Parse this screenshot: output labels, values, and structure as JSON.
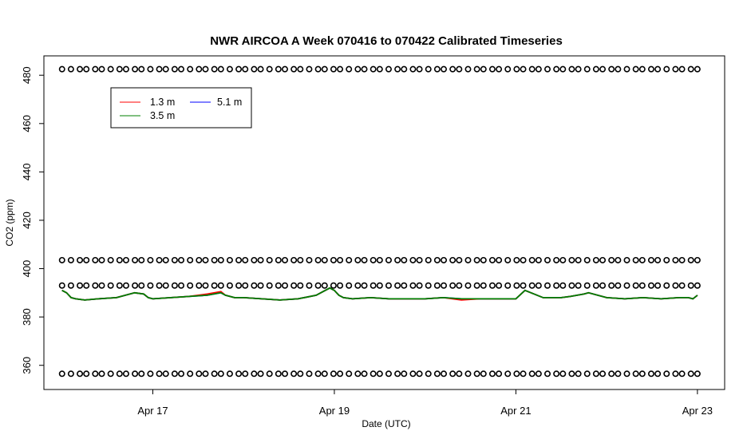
{
  "chart_data": {
    "type": "line",
    "title": "NWR AIRCOA A  Week 070416 to 070422  Calibrated Timeseries",
    "xlabel": "Date (UTC)",
    "ylabel": "CO2 (ppm)",
    "x_ticks": [
      {
        "label": "Apr 17",
        "value": 1
      },
      {
        "label": "Apr 19",
        "value": 3
      },
      {
        "label": "Apr 21",
        "value": 5
      },
      {
        "label": "Apr 23",
        "value": 7
      }
    ],
    "y_ticks": [
      360,
      380,
      400,
      420,
      440,
      460,
      480
    ],
    "xlim": [
      -0.2,
      7.3
    ],
    "ylim": [
      350,
      488
    ],
    "legend": {
      "placement": "top-left",
      "entries": [
        {
          "name": "1.3 m",
          "color": "#ff0000"
        },
        {
          "name": "5.1 m",
          "color": "#0000ff"
        },
        {
          "name": "3.5 m",
          "color": "#008000"
        }
      ]
    },
    "series": [
      {
        "name": "5.1 m",
        "color": "#0000ff",
        "x": [
          0.0,
          0.05,
          0.1,
          0.15,
          0.25,
          0.4,
          0.6,
          0.8,
          0.9,
          0.95,
          1.0,
          1.2,
          1.4,
          1.6,
          1.75,
          1.8,
          1.9,
          2.0,
          2.2,
          2.4,
          2.6,
          2.8,
          2.9,
          2.95,
          3.0,
          3.05,
          3.1,
          3.2,
          3.4,
          3.6,
          3.8,
          4.0,
          4.2,
          4.4,
          4.6,
          4.7,
          4.8,
          4.9,
          5.0,
          5.1,
          5.3,
          5.5,
          5.6,
          5.75,
          5.8,
          6.0,
          6.2,
          6.4,
          6.6,
          6.8,
          6.9,
          6.95,
          7.0
        ],
        "values": [
          391,
          390,
          388,
          387.5,
          387,
          387.5,
          388,
          390,
          389.5,
          388,
          387.5,
          388,
          388.5,
          389,
          390,
          389,
          388,
          388,
          387.5,
          387,
          387.5,
          389,
          391,
          392,
          391,
          389,
          388,
          387.5,
          388,
          387.5,
          387.5,
          387.5,
          388,
          387.5,
          387.5,
          387.5,
          387.5,
          387.5,
          387.5,
          391,
          388,
          388,
          388.5,
          389.5,
          390,
          388,
          387.5,
          388,
          387.5,
          388,
          388,
          387.5,
          389
        ]
      },
      {
        "name": "1.3 m",
        "color": "#ff0000",
        "x": [
          0.0,
          0.05,
          0.1,
          0.15,
          0.25,
          0.4,
          0.6,
          0.8,
          0.9,
          0.95,
          1.0,
          1.2,
          1.4,
          1.6,
          1.75,
          1.8,
          1.9,
          2.0,
          2.2,
          2.4,
          2.6,
          2.8,
          2.9,
          2.95,
          3.0,
          3.05,
          3.1,
          3.2,
          3.4,
          3.6,
          3.8,
          4.0,
          4.2,
          4.4,
          4.6,
          4.7,
          4.8,
          4.9,
          5.0,
          5.1,
          5.3,
          5.5,
          5.6,
          5.75,
          5.8,
          6.0,
          6.2,
          6.4,
          6.6,
          6.8,
          6.9,
          6.95,
          7.0
        ],
        "values": [
          391,
          390,
          388,
          387.5,
          387,
          387.5,
          388,
          390,
          389.5,
          388,
          387.5,
          388,
          388.5,
          389.5,
          390.5,
          389,
          388,
          388,
          387.5,
          387,
          387.5,
          389,
          391,
          392,
          391,
          389,
          388,
          387.5,
          388,
          387.5,
          387.5,
          387.5,
          388,
          387,
          387.5,
          387.5,
          387.5,
          387.5,
          387.5,
          391,
          388,
          388,
          388.5,
          389.5,
          390,
          388,
          387.5,
          388,
          387.5,
          388,
          388,
          387.5,
          389
        ]
      },
      {
        "name": "3.5 m",
        "color": "#008000",
        "x": [
          0.0,
          0.05,
          0.1,
          0.15,
          0.25,
          0.4,
          0.6,
          0.8,
          0.9,
          0.95,
          1.0,
          1.2,
          1.4,
          1.6,
          1.75,
          1.8,
          1.9,
          2.0,
          2.2,
          2.4,
          2.6,
          2.8,
          2.9,
          2.95,
          3.0,
          3.05,
          3.1,
          3.2,
          3.4,
          3.6,
          3.8,
          4.0,
          4.2,
          4.4,
          4.6,
          4.7,
          4.8,
          4.9,
          5.0,
          5.1,
          5.3,
          5.5,
          5.6,
          5.75,
          5.8,
          6.0,
          6.2,
          6.4,
          6.6,
          6.8,
          6.9,
          6.95,
          7.0
        ],
        "values": [
          391,
          390,
          388,
          387.5,
          387,
          387.5,
          388,
          390,
          389.5,
          388,
          387.5,
          388,
          388.5,
          389,
          390,
          389,
          388,
          388,
          387.5,
          387,
          387.5,
          389,
          391,
          392,
          391,
          389,
          388,
          387.5,
          388,
          387.5,
          387.5,
          387.5,
          388,
          387.5,
          387.5,
          387.5,
          387.5,
          387.5,
          387.5,
          391,
          388,
          388,
          388.5,
          389.5,
          390,
          388,
          387.5,
          388,
          387.5,
          388,
          388,
          387.5,
          389
        ]
      }
    ],
    "reference_points": [
      {
        "values": [
          482.5,
          403.5,
          393,
          356.5
        ],
        "x_start": 0.0,
        "x_end": 7.0
      }
    ],
    "marker": "o",
    "grid": false
  }
}
